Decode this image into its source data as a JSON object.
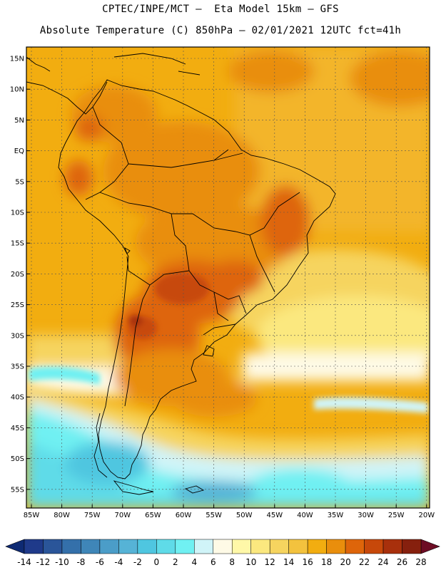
{
  "header": {
    "line1": "CPTEC/INPE/MCT –  Eta Model 15km – GFS",
    "line2": "Absolute Temperature (C) 850hPa – 02/01/2021 12UTC fct=41h"
  },
  "axes": {
    "lat_labels": [
      "15N",
      "10N",
      "5N",
      "EQ",
      "5S",
      "10S",
      "15S",
      "20S",
      "25S",
      "30S",
      "35S",
      "40S",
      "45S",
      "50S",
      "55S"
    ],
    "lon_labels": [
      "85W",
      "80W",
      "75W",
      "70W",
      "65W",
      "60W",
      "55W",
      "50W",
      "45W",
      "40W",
      "35W",
      "30W",
      "25W",
      "20W"
    ]
  },
  "colorbar": {
    "labels": [
      "-14",
      "-12",
      "-10",
      "-8",
      "-6",
      "-4",
      "-2",
      "0",
      "2",
      "4",
      "6",
      "8",
      "10",
      "12",
      "14",
      "16",
      "18",
      "20",
      "22",
      "24",
      "26",
      "28"
    ],
    "colors": [
      "#1f3a8a",
      "#2a5599",
      "#3470aa",
      "#3f86b8",
      "#4b9dc8",
      "#56b3d6",
      "#4fc6e0",
      "#5fdbe8",
      "#70f0f2",
      "#d0f4f8",
      "#fefae6",
      "#fff8a8",
      "#fbe87f",
      "#f6d45f",
      "#f3c23e",
      "#f2ad10",
      "#e98e0c",
      "#de650a",
      "#c7480a",
      "#a8300c",
      "#86200e"
    ],
    "under_color": "#0e2a73",
    "over_color": "#6d0c24"
  }
}
